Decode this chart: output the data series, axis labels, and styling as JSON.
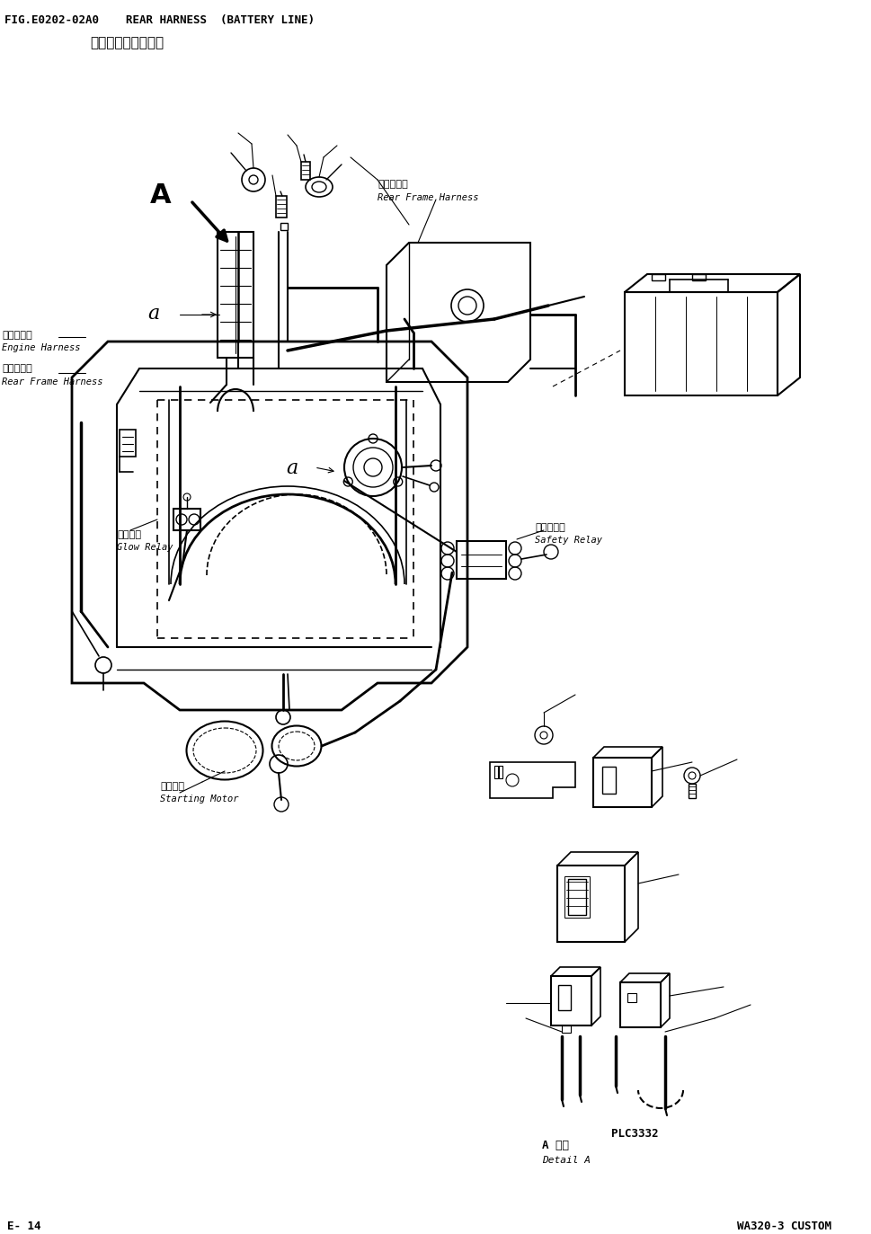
{
  "title_line1": "FIG.E0202-02A0    REAR HARNESS  (BATTERY LINE)",
  "title_line2": "后线束（电瑞配线）",
  "footer_left": "E- 14",
  "footer_right": "WA320-3 CUSTOM",
  "page_ref": "PLC3332",
  "bg_color": "#ffffff",
  "line_color": "#000000",
  "label_rear_frame_top_zh": "后车架线束",
  "label_rear_frame_top_en": "Rear Frame Harness",
  "label_engine_zh": "发动机线束",
  "label_engine_en": "Engine Harness",
  "label_rear_frame_left_zh": "后车架线束",
  "label_rear_frame_left_en": "Rear Frame Harness",
  "label_glow_zh": "热继电器",
  "label_glow_en": "Glow Relay",
  "label_motor_zh": "启动马达",
  "label_motor_en": "Starting Motor",
  "label_safety_zh": "安全继电器",
  "label_safety_en": "Safety Relay",
  "label_detail_zh": "A 详细",
  "label_detail_en": "Detail A"
}
